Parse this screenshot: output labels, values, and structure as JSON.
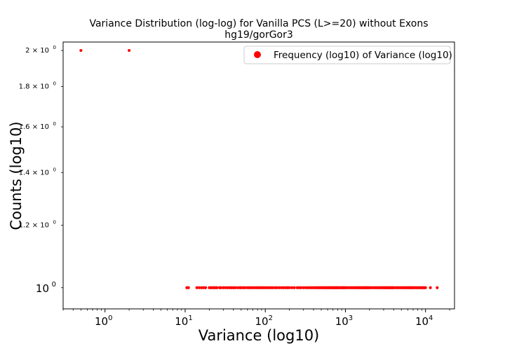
{
  "chart_data": {
    "type": "scatter",
    "title": "Variance Distribution (log-log) for Vanilla PCS (L>=20) without Exons",
    "subtitle": "hg19/gorGor3",
    "xlabel": "Variance (log10)",
    "ylabel": "Counts (log10)",
    "xscale": "log",
    "yscale": "log",
    "xlim": [
      0.3,
      23000
    ],
    "ylim": [
      0.94,
      2.05
    ],
    "grid": false,
    "legend_position": "top-right",
    "marker_color": "#ff0000",
    "series": [
      {
        "name": "Frequency (log10) of Variance (log10)",
        "points_count2": [
          0.5,
          2
        ],
        "points_count1": [
          10.5,
          11,
          14,
          15,
          16,
          17,
          18,
          20,
          21,
          22,
          23,
          24,
          25,
          27,
          28,
          30,
          32,
          34,
          36,
          38,
          40,
          42,
          45,
          48,
          50,
          53,
          56,
          60,
          63,
          66,
          70,
          74,
          78,
          82,
          86,
          90,
          95,
          100,
          106,
          112,
          118,
          125,
          133,
          140,
          150,
          160,
          170,
          180,
          190,
          200,
          215,
          230,
          250,
          265,
          280,
          300,
          320,
          340,
          360,
          380,
          400,
          420,
          440,
          460,
          480,
          500,
          520,
          540,
          560,
          580,
          600,
          620,
          640,
          660,
          680,
          700,
          720,
          740,
          760,
          780,
          800,
          830,
          860,
          890,
          920,
          950,
          980,
          1000,
          1050,
          1100,
          1150,
          1200,
          1250,
          1300,
          1350,
          1400,
          1450,
          1500,
          1550,
          1600,
          1650,
          1700,
          1750,
          1800,
          1850,
          1900,
          1950,
          2000,
          2100,
          2200,
          2300,
          2400,
          2500,
          2600,
          2700,
          2800,
          2900,
          3000,
          3100,
          3200,
          3300,
          3400,
          3500,
          3600,
          3700,
          3800,
          3900,
          4000,
          4200,
          4400,
          4600,
          4800,
          5000,
          5200,
          5400,
          5600,
          5800,
          6000,
          6200,
          6400,
          6600,
          6800,
          7000,
          7300,
          7600,
          7900,
          8200,
          8500,
          8800,
          9100,
          9400,
          9700,
          10000,
          11500,
          14000
        ]
      }
    ],
    "x_ticks": [
      {
        "value": 1,
        "base": "10",
        "exp": "0"
      },
      {
        "value": 10,
        "base": "10",
        "exp": "1"
      },
      {
        "value": 100,
        "base": "10",
        "exp": "2"
      },
      {
        "value": 1000,
        "base": "10",
        "exp": "3"
      },
      {
        "value": 10000,
        "base": "10",
        "exp": "4"
      }
    ],
    "y_ticks": [
      {
        "value": 1,
        "mant": "10",
        "exp": "0"
      },
      {
        "value": 1.2,
        "mant": "1.2 × 10",
        "exp": "0"
      },
      {
        "value": 1.4,
        "mant": "1.4 × 10",
        "exp": "0"
      },
      {
        "value": 1.6,
        "mant": "1.6 × 10",
        "exp": "0"
      },
      {
        "value": 1.8,
        "mant": "1.8 × 10",
        "exp": "0"
      },
      {
        "value": 2,
        "mant": "2 × 10",
        "exp": "0"
      }
    ]
  }
}
